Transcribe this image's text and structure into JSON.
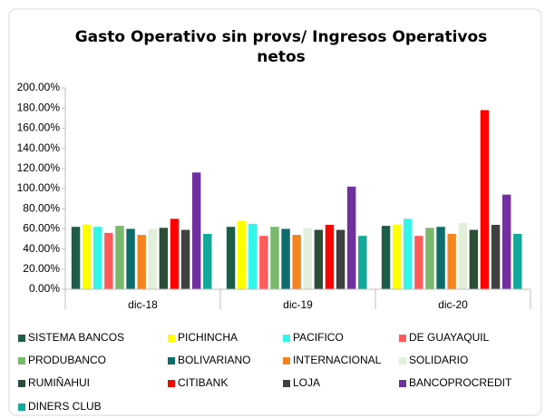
{
  "chart_data": {
    "type": "bar",
    "title": "Gasto Operativo sin provs/ Ingresos Operativos netos",
    "categories": [
      "dic-18",
      "dic-19",
      "dic-20"
    ],
    "series": [
      {
        "name": "SISTEMA BANCOS",
        "color": "#1e5c4a",
        "values": [
          62,
          62,
          63
        ]
      },
      {
        "name": "PICHINCHA",
        "color": "#ffff00",
        "values": [
          64,
          68,
          64
        ]
      },
      {
        "name": "PACIFICO",
        "color": "#33f5e8",
        "values": [
          62,
          65,
          70
        ]
      },
      {
        "name": "DE GUAYAQUIL",
        "color": "#ff5b5b",
        "values": [
          56,
          53,
          53
        ]
      },
      {
        "name": "PRODUBANCO",
        "color": "#78b96c",
        "values": [
          63,
          62,
          61
        ]
      },
      {
        "name": "BOLIVARIANO",
        "color": "#0c6d6b",
        "values": [
          60,
          60,
          62
        ]
      },
      {
        "name": "INTERNACIONAL",
        "color": "#f5841f",
        "values": [
          54,
          54,
          55
        ]
      },
      {
        "name": "SOLIDARIO",
        "color": "#e2f0d9",
        "values": [
          60,
          61,
          66
        ]
      },
      {
        "name": "RUMIÑAHUI",
        "color": "#2e4d39",
        "values": [
          61,
          59,
          59
        ]
      },
      {
        "name": "CITIBANK",
        "color": "#ff0000",
        "values": [
          70,
          64,
          178
        ]
      },
      {
        "name": "LOJA",
        "color": "#404040",
        "values": [
          59,
          59,
          64
        ]
      },
      {
        "name": "BANCOPROCREDIT",
        "color": "#7030a0",
        "values": [
          116,
          102,
          94
        ]
      },
      {
        "name": "DINERS CLUB",
        "color": "#12a99a",
        "values": [
          55,
          53,
          55
        ]
      }
    ],
    "ylim": [
      0,
      200
    ],
    "yticks": [
      {
        "value": 0,
        "label": "0.00%"
      },
      {
        "value": 20,
        "label": "20.00%"
      },
      {
        "value": 40,
        "label": "40.00%"
      },
      {
        "value": 60,
        "label": "60.00%"
      },
      {
        "value": 80,
        "label": "80.00%"
      },
      {
        "value": 100,
        "label": "100.00%"
      },
      {
        "value": 120,
        "label": "120.00%"
      },
      {
        "value": 140,
        "label": "140.00%"
      },
      {
        "value": 160,
        "label": "160.00%"
      },
      {
        "value": 180,
        "label": "180.00%"
      },
      {
        "value": 200,
        "label": "200.00%"
      }
    ],
    "grid": false
  }
}
